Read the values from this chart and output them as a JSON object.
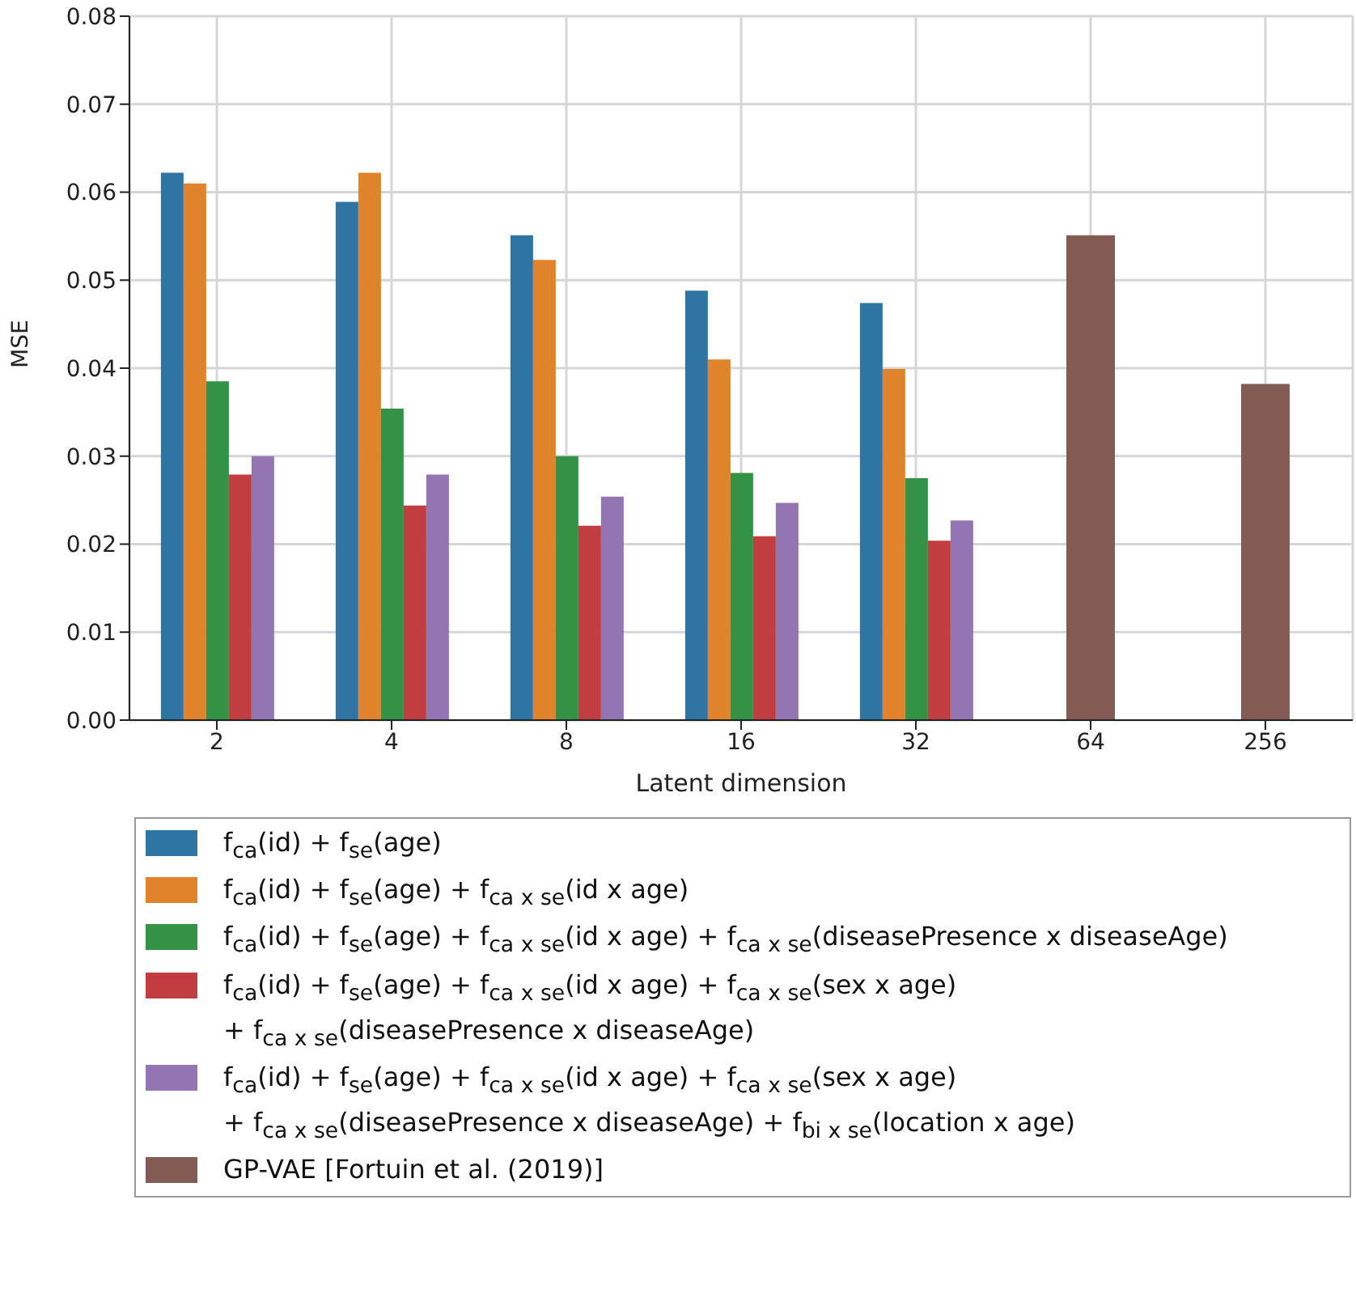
{
  "chart_data": {
    "type": "bar",
    "xlabel": "Latent dimension",
    "ylabel": "MSE",
    "categories": [
      "2",
      "4",
      "8",
      "16",
      "32",
      "64",
      "256"
    ],
    "series": [
      {
        "name": "f$_{ca}$(id) + f$_{se}$(age)",
        "color": "#2e75a4",
        "values": [
          0.0622,
          0.0589,
          0.0551,
          0.0488,
          0.0474,
          null,
          null
        ]
      },
      {
        "name": "f$_{ca}$(id) + f$_{se}$(age) + f$_{ca x se}$(id x age)",
        "color": "#e1832b",
        "values": [
          0.061,
          0.0622,
          0.0523,
          0.041,
          0.0399,
          null,
          null
        ]
      },
      {
        "name": "f$_{ca}$(id) + f$_{se}$(age) + f$_{ca x se}$(id x age) + f$_{ca x se}$(diseasePresence x diseaseAge)",
        "color": "#349244",
        "values": [
          0.0385,
          0.0354,
          0.03,
          0.0281,
          0.0275,
          null,
          null
        ]
      },
      {
        "name": "f$_{ca}$(id) + f$_{se}$(age) + f$_{ca x se}$(id x age) + f$_{ca x se}$(sex x age)\n+ f$_{ca x se}$(diseasePresence x diseaseAge)",
        "color": "#c23d3f",
        "values": [
          0.0279,
          0.0244,
          0.0221,
          0.0209,
          0.0204,
          null,
          null
        ]
      },
      {
        "name": "f$_{ca}$(id) + f$_{se}$(age) + f$_{ca x se}$(id x age) + f$_{ca x se}$(sex x age)\n+ f$_{ca x se}$(diseasePresence x diseaseAge) + f$_{bi x se}$(location x age)",
        "color": "#9475b4",
        "values": [
          0.03,
          0.0279,
          0.0254,
          0.0247,
          0.0227,
          null,
          null
        ]
      },
      {
        "name": "GP-VAE [Fortuin et al. (2019)]",
        "color": "#845b53",
        "values": [
          null,
          null,
          null,
          null,
          null,
          0.0551,
          0.0382
        ]
      }
    ],
    "ylim": [
      0,
      0.08
    ],
    "yticks": [
      {
        "value": 0,
        "label": "0.00"
      },
      0.01,
      0.02,
      0.03,
      0.04,
      0.05,
      0.06,
      0.07,
      0.08
    ],
    "grid": true,
    "legend": "bottom"
  }
}
